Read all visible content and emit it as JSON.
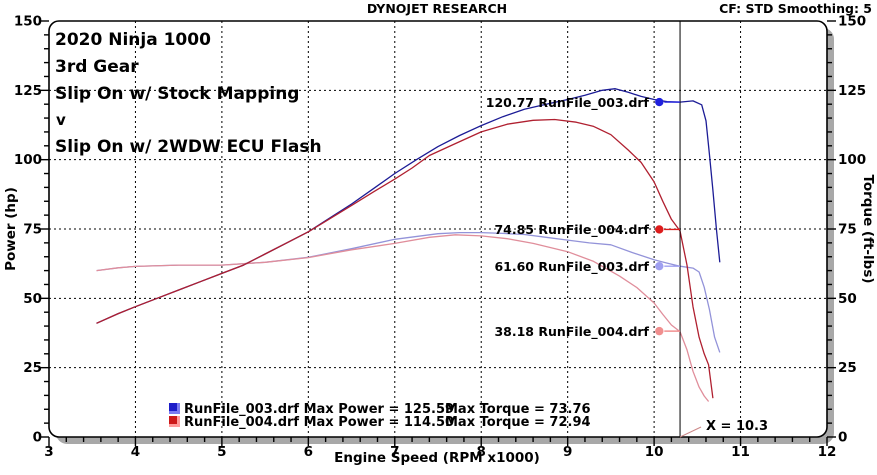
{
  "header": {
    "title": "DYNOJET RESEARCH",
    "cf_label": "CF: STD  Smoothing: 5"
  },
  "annotations": {
    "line1": {
      "text": "2020 Ninja 1000",
      "color": "#000000"
    },
    "line2": {
      "text": "3rd Gear",
      "color": "#000000"
    },
    "line3": {
      "text": "Slip On w/ Stock Mapping",
      "color": "#e02028"
    },
    "line4": {
      "text": "v",
      "color": "#000000"
    },
    "line5": {
      "text": "Slip On w/ 2WDW ECU Flash",
      "color": "#18a0e0"
    }
  },
  "chart_data": {
    "type": "line",
    "title": "DYNOJET RESEARCH",
    "xlabel": "Engine Speed (RPM x1000)",
    "ylabel_left": "Power (hp)",
    "ylabel_right": "Torque (ft-lbs)",
    "xlim": [
      3,
      12
    ],
    "ylim": [
      0,
      150
    ],
    "x_ticks": [
      3,
      4,
      5,
      6,
      7,
      8,
      9,
      10,
      11,
      12
    ],
    "y_ticks": [
      0,
      25,
      50,
      75,
      100,
      125,
      150
    ],
    "x_minor_step": 0.2,
    "y_minor_step": 5,
    "grid": "dashed black major",
    "legend_position": "bottom-left inside",
    "series": [
      {
        "name": "RunFile_003.drf Torque",
        "axis": "right",
        "color": "#9393d9",
        "points": [
          [
            3.55,
            60
          ],
          [
            3.8,
            61
          ],
          [
            4.0,
            61.5
          ],
          [
            4.5,
            62
          ],
          [
            5.0,
            62
          ],
          [
            5.5,
            63
          ],
          [
            6.0,
            64.8
          ],
          [
            6.5,
            67.9
          ],
          [
            7.0,
            71.3
          ],
          [
            7.5,
            73.3
          ],
          [
            7.75,
            73.7
          ],
          [
            8.0,
            73.7
          ],
          [
            8.25,
            73.4
          ],
          [
            8.5,
            73
          ],
          [
            8.75,
            72
          ],
          [
            9.0,
            71
          ],
          [
            9.25,
            70
          ],
          [
            9.5,
            69.3
          ],
          [
            9.75,
            66.5
          ],
          [
            10.0,
            63.9
          ],
          [
            10.15,
            62.7
          ],
          [
            10.3,
            61.6
          ],
          [
            10.45,
            60.9
          ],
          [
            10.52,
            59.5
          ],
          [
            10.58,
            54
          ],
          [
            10.64,
            46
          ],
          [
            10.7,
            36
          ],
          [
            10.76,
            30.5
          ]
        ]
      },
      {
        "name": "RunFile_004.drf Torque",
        "axis": "right",
        "color": "#e08e9b",
        "points": [
          [
            3.55,
            60
          ],
          [
            3.8,
            61
          ],
          [
            4.0,
            61.5
          ],
          [
            4.5,
            62
          ],
          [
            5.0,
            62
          ],
          [
            5.5,
            63
          ],
          [
            6.0,
            64.7
          ],
          [
            6.5,
            67.5
          ],
          [
            7.0,
            69.8
          ],
          [
            7.4,
            72
          ],
          [
            7.7,
            72.9
          ],
          [
            8.0,
            72.5
          ],
          [
            8.3,
            71.5
          ],
          [
            8.6,
            69.8
          ],
          [
            9.0,
            66.8
          ],
          [
            9.3,
            63.3
          ],
          [
            9.6,
            58
          ],
          [
            9.8,
            53.9
          ],
          [
            10.0,
            48.3
          ],
          [
            10.1,
            44.2
          ],
          [
            10.2,
            40.4
          ],
          [
            10.3,
            38.0
          ],
          [
            10.38,
            31.4
          ],
          [
            10.45,
            23.7
          ],
          [
            10.52,
            18
          ],
          [
            10.58,
            14.8
          ],
          [
            10.63,
            12.8
          ]
        ]
      },
      {
        "name": "RunFile_003.drf Power",
        "axis": "left",
        "color": "#1c1c96",
        "points": [
          [
            3.55,
            41
          ],
          [
            3.8,
            44.5
          ],
          [
            4.0,
            47
          ],
          [
            4.25,
            50
          ],
          [
            4.5,
            53
          ],
          [
            4.75,
            56
          ],
          [
            5.0,
            59
          ],
          [
            5.25,
            62
          ],
          [
            5.5,
            66
          ],
          [
            5.75,
            70
          ],
          [
            6.0,
            74
          ],
          [
            6.25,
            79
          ],
          [
            6.5,
            84
          ],
          [
            6.75,
            89.5
          ],
          [
            7.0,
            95
          ],
          [
            7.25,
            100
          ],
          [
            7.5,
            104.7
          ],
          [
            7.75,
            108.7
          ],
          [
            8.0,
            112.3
          ],
          [
            8.25,
            115.5
          ],
          [
            8.5,
            118.2
          ],
          [
            8.75,
            120
          ],
          [
            9.0,
            121.7
          ],
          [
            9.2,
            123.2
          ],
          [
            9.4,
            125
          ],
          [
            9.55,
            125.59
          ],
          [
            9.7,
            124.3
          ],
          [
            9.85,
            122.8
          ],
          [
            10.0,
            121.7
          ],
          [
            10.15,
            120.9
          ],
          [
            10.3,
            120.77
          ],
          [
            10.45,
            121.2
          ],
          [
            10.55,
            119.8
          ],
          [
            10.6,
            114
          ],
          [
            10.64,
            102
          ],
          [
            10.68,
            89
          ],
          [
            10.72,
            75
          ],
          [
            10.76,
            63
          ]
        ]
      },
      {
        "name": "RunFile_004.drf Power",
        "axis": "left",
        "color": "#b02030",
        "points": [
          [
            3.55,
            41
          ],
          [
            3.8,
            44.5
          ],
          [
            4.0,
            47
          ],
          [
            4.25,
            50
          ],
          [
            4.5,
            53
          ],
          [
            4.75,
            56
          ],
          [
            5.0,
            59
          ],
          [
            5.25,
            62
          ],
          [
            5.5,
            66
          ],
          [
            5.75,
            70
          ],
          [
            6.0,
            74
          ],
          [
            6.25,
            78.7
          ],
          [
            6.5,
            83.5
          ],
          [
            6.75,
            88.3
          ],
          [
            7.0,
            93
          ],
          [
            7.2,
            97
          ],
          [
            7.4,
            101.5
          ],
          [
            7.7,
            105.8
          ],
          [
            8.0,
            110
          ],
          [
            8.3,
            112.8
          ],
          [
            8.6,
            114.2
          ],
          [
            8.85,
            114.5
          ],
          [
            9.1,
            113.5
          ],
          [
            9.3,
            112
          ],
          [
            9.5,
            109
          ],
          [
            9.7,
            103.5
          ],
          [
            9.85,
            99
          ],
          [
            10.0,
            92
          ],
          [
            10.1,
            85
          ],
          [
            10.2,
            78.5
          ],
          [
            10.3,
            74.3
          ],
          [
            10.38,
            62
          ],
          [
            10.45,
            47
          ],
          [
            10.52,
            36
          ],
          [
            10.58,
            30
          ],
          [
            10.63,
            26
          ],
          [
            10.68,
            14
          ]
        ]
      }
    ],
    "cursor": {
      "x": 10.3,
      "label": "X = 10.3",
      "dot_x": 10.06,
      "readouts": [
        {
          "value": 120.77,
          "file": "RunFile_003.drf",
          "text": "120.77 RunFile_003.drf",
          "color": "#2020dd"
        },
        {
          "value": 74.85,
          "file": "RunFile_004.drf",
          "text": "74.85 RunFile_004.drf",
          "color": "#dd1c1c"
        },
        {
          "value": 61.6,
          "file": "RunFile_003.drf",
          "text": "61.60 RunFile_003.drf",
          "color": "#9f9ff0"
        },
        {
          "value": 38.18,
          "file": "RunFile_004.drf",
          "text": "38.18 RunFile_004.drf",
          "color": "#f08f8f"
        }
      ]
    },
    "legend": {
      "rows": [
        {
          "file": "RunFile_003.drf",
          "max_power": 125.59,
          "max_torque": 73.76,
          "power_text": "RunFile_003.drf Max Power = 125.59",
          "torque_text": "Max Torque = 73.76",
          "color_dark": "#1c1cc8",
          "color_light": "#7b7bf0"
        },
        {
          "file": "RunFile_004.drf",
          "max_power": 114.5,
          "max_torque": 72.94,
          "power_text": "RunFile_004.drf Max Power = 114.50",
          "torque_text": "Max Torque = 72.94",
          "color_dark": "#cc1818",
          "color_light": "#ff9a9a"
        }
      ]
    }
  }
}
